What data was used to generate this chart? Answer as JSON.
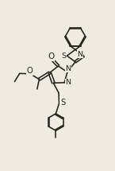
{
  "bg_color": "#f0ebe0",
  "line_color": "#222222",
  "line_width": 1.15,
  "figsize": [
    1.45,
    2.15
  ],
  "dpi": 100,
  "xlim": [
    0,
    10
  ],
  "ylim": [
    0,
    15
  ]
}
